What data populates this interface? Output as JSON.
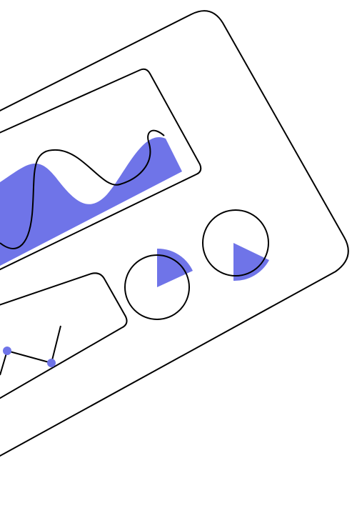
{
  "illustration": {
    "colors": {
      "accent": "#6f74e8",
      "stroke": "#000000",
      "background": "#ffffff",
      "panel_fill": "#ffffff"
    },
    "icons": [
      "dashboard-card",
      "area-chart",
      "line-chart",
      "pie-gauge",
      "pie-gauge"
    ]
  }
}
